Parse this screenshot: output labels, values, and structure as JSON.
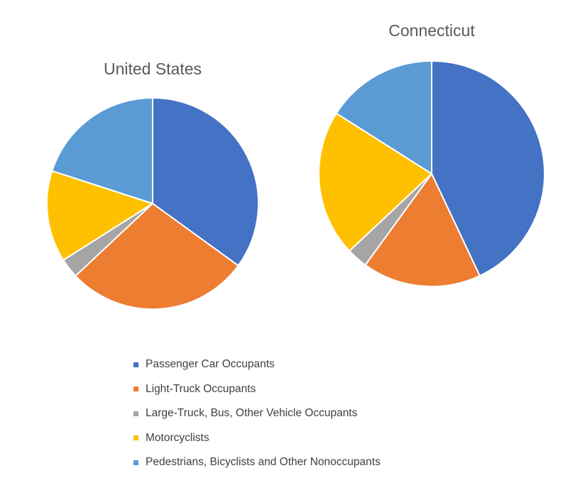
{
  "chart_data": [
    {
      "type": "pie",
      "title": "United States",
      "categories": [
        "Passenger Car Occupants",
        "Light-Truck Occupants",
        "Large-Truck, Bus, Other Vehicle Occupants",
        "Motorcyclists",
        "Pedestrians, Bicyclists and Other Nonoccupants"
      ],
      "values": [
        35,
        28,
        3,
        14,
        20
      ],
      "start": "12 o'clock",
      "direction": "clockwise"
    },
    {
      "type": "pie",
      "title": "Connecticut",
      "categories": [
        "Passenger Car Occupants",
        "Light-Truck Occupants",
        "Large-Truck, Bus, Other Vehicle Occupants",
        "Motorcyclists",
        "Pedestrians, Bicyclists and Other Nonoccupants"
      ],
      "values": [
        43,
        17,
        3,
        21,
        16
      ],
      "start": "12 o'clock",
      "direction": "clockwise"
    }
  ],
  "legend": {
    "placement": "bottom",
    "items": [
      {
        "label": "Passenger Car Occupants",
        "color": "#4472C4"
      },
      {
        "label": "Light-Truck Occupants",
        "color": "#ED7D31"
      },
      {
        "label": "Large-Truck, Bus, Other Vehicle Occupants",
        "color": "#A5A5A5"
      },
      {
        "label": "Motorcyclists",
        "color": "#FFC000"
      },
      {
        "label": "Pedestrians, Bicyclists and Other Nonoccupants",
        "color": "#5B9BD5"
      }
    ]
  }
}
